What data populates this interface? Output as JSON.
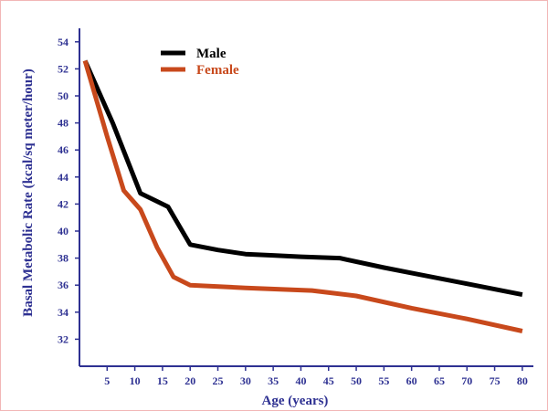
{
  "chart_data": {
    "type": "line",
    "xlabel": "Age (years)",
    "ylabel": "Basal Metabolic Rate (kcal/sq meter/hour)",
    "xlim": [
      0,
      82
    ],
    "ylim": [
      30,
      55
    ],
    "x_ticks": [
      5,
      10,
      15,
      20,
      25,
      30,
      35,
      40,
      45,
      50,
      55,
      60,
      65,
      70,
      75,
      80
    ],
    "y_ticks": [
      32,
      34,
      36,
      38,
      40,
      42,
      44,
      46,
      48,
      50,
      52,
      54
    ],
    "legend_position": "top-left",
    "grid": false,
    "series": [
      {
        "name": "Male",
        "color": "#000000",
        "points": [
          [
            1,
            52.6
          ],
          [
            6,
            48
          ],
          [
            11,
            42.8
          ],
          [
            13,
            42.4
          ],
          [
            16,
            41.8
          ],
          [
            20,
            39
          ],
          [
            25,
            38.6
          ],
          [
            30,
            38.3
          ],
          [
            35,
            38.2
          ],
          [
            40,
            38.1
          ],
          [
            47,
            38
          ],
          [
            55,
            37.3
          ],
          [
            60,
            36.9
          ],
          [
            70,
            36.1
          ],
          [
            80,
            35.3
          ]
        ]
      },
      {
        "name": "Female",
        "color": "#c8491c",
        "points": [
          [
            1,
            52.6
          ],
          [
            5,
            47
          ],
          [
            8,
            43
          ],
          [
            11,
            41.6
          ],
          [
            14,
            38.8
          ],
          [
            17,
            36.6
          ],
          [
            20,
            36
          ],
          [
            30,
            35.8
          ],
          [
            42,
            35.6
          ],
          [
            50,
            35.2
          ],
          [
            60,
            34.3
          ],
          [
            70,
            33.5
          ],
          [
            80,
            32.6
          ]
        ]
      }
    ]
  }
}
